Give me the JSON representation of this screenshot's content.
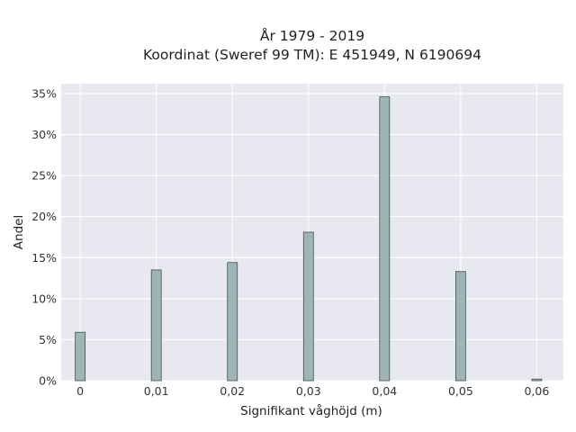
{
  "chart_data": {
    "type": "bar",
    "title_line1": "År 1979 - 2019",
    "title_line2": "Koordinat (Sweref 99 TM): E 451949, N 6190694",
    "xlabel": "Signifikant våghöjd (m)",
    "ylabel": "Andel",
    "x_ticks": [
      "0",
      "0,01",
      "0,02",
      "0,03",
      "0,04",
      "0,05",
      "0,06"
    ],
    "y_ticks": [
      "0%",
      "5%",
      "10%",
      "15%",
      "20%",
      "25%",
      "30%",
      "35%"
    ],
    "xlim": [
      -0.0025,
      0.0635
    ],
    "ylim": [
      0,
      36.2
    ],
    "bin_width": 0.0013,
    "x": [
      0,
      0.01,
      0.02,
      0.03,
      0.04,
      0.05,
      0.06
    ],
    "values": [
      5.9,
      13.5,
      14.4,
      18.1,
      34.6,
      13.3,
      0.2
    ],
    "unit": "%",
    "bar_color": "#9fb5b5",
    "bar_edge_color": "#3f4f4f",
    "plot_background": "#e8e9f0",
    "grid": true
  }
}
